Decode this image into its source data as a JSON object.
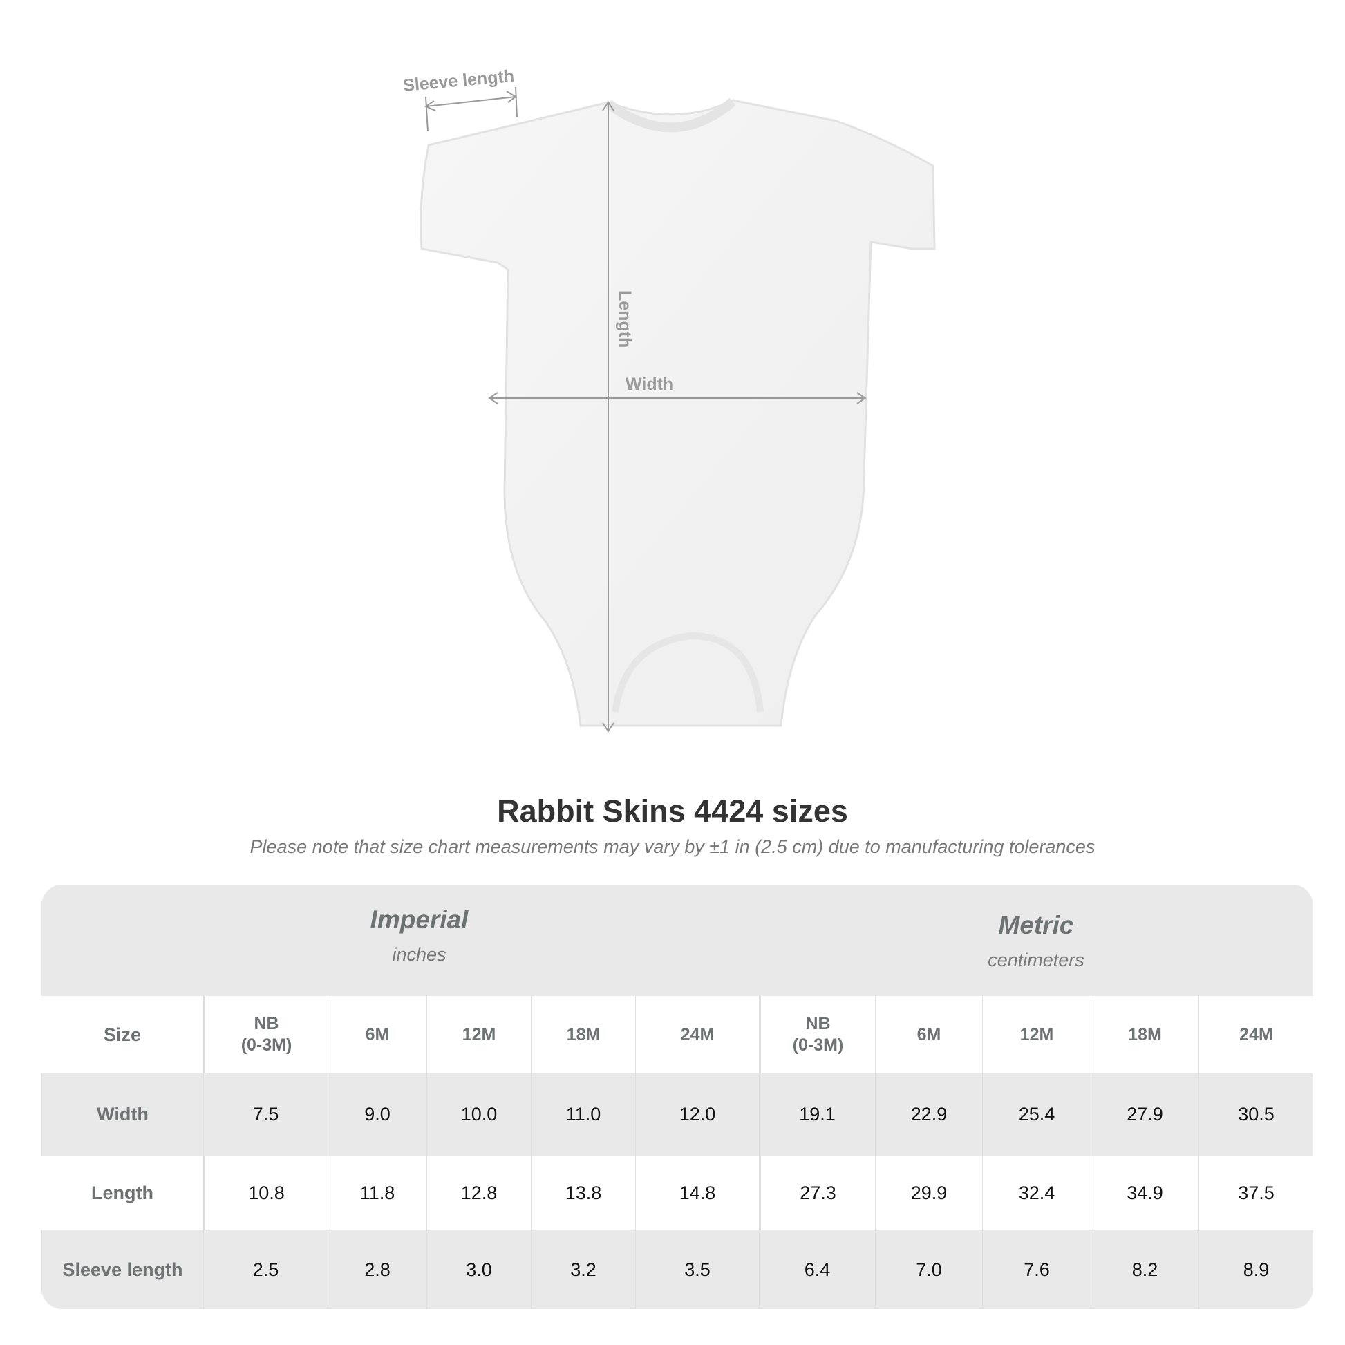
{
  "diagram": {
    "sleeve_label": "Sleeve length",
    "length_label": "Length",
    "width_label": "Width"
  },
  "title": "Rabbit Skins 4424 sizes",
  "subtitle": "Please note that size chart measurements may vary by ±1 in (2.5 cm) due to manufacturing tolerances",
  "table": {
    "imperial": {
      "name": "Imperial",
      "unit": "inches"
    },
    "metric": {
      "name": "Metric",
      "unit": "centimeters"
    },
    "size_label": "Size",
    "sizes": [
      "NB\n(0-3M)",
      "6M",
      "12M",
      "18M",
      "24M"
    ],
    "rows": [
      {
        "label": "Width",
        "imperial": [
          "7.5",
          "9.0",
          "10.0",
          "11.0",
          "12.0"
        ],
        "metric": [
          "19.1",
          "22.9",
          "25.4",
          "27.9",
          "30.5"
        ]
      },
      {
        "label": "Length",
        "imperial": [
          "10.8",
          "11.8",
          "12.8",
          "13.8",
          "14.8"
        ],
        "metric": [
          "27.3",
          "29.9",
          "32.4",
          "34.9",
          "37.5"
        ]
      },
      {
        "label": "Sleeve length",
        "imperial": [
          "2.5",
          "2.8",
          "3.0",
          "3.2",
          "3.5"
        ],
        "metric": [
          "6.4",
          "7.0",
          "7.6",
          "8.2",
          "8.9"
        ]
      }
    ]
  },
  "colors": {
    "header_bg": "#e9e9e9",
    "label_text": "#6d7272",
    "measure_lines": "#9a9a9a"
  }
}
